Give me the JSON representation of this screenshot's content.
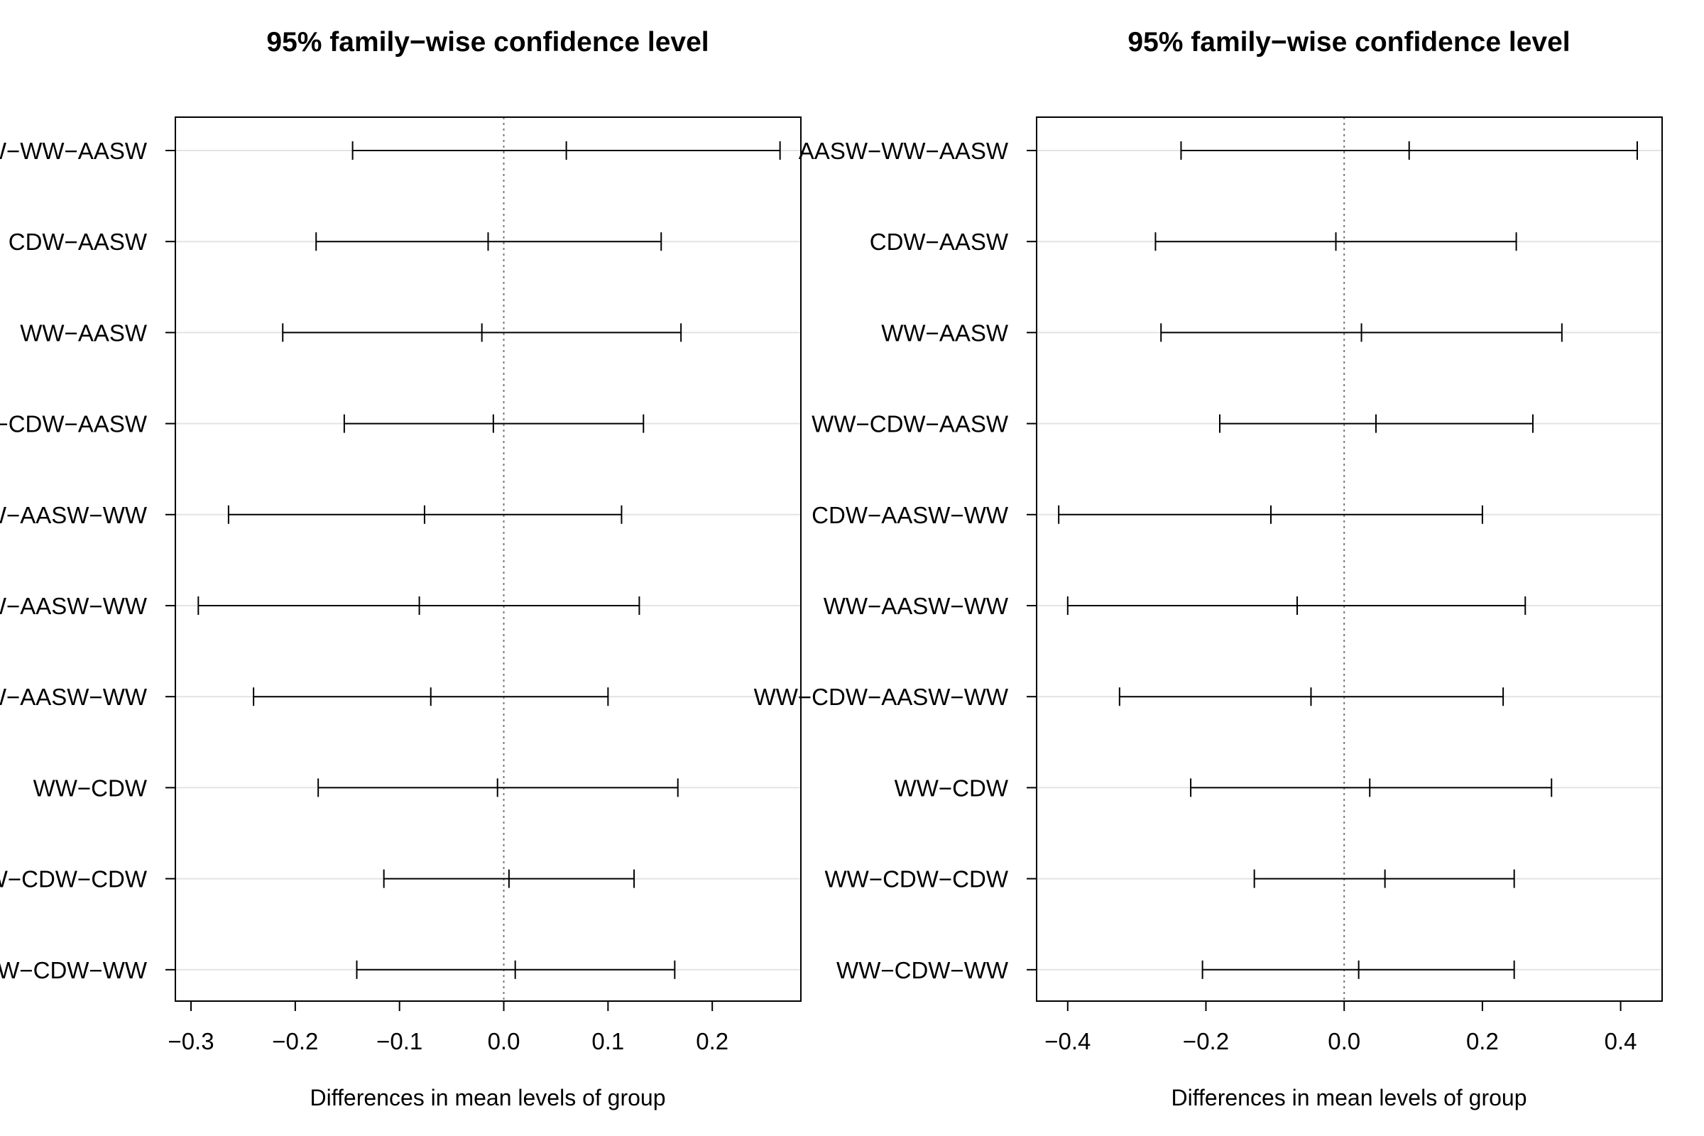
{
  "chart_data": [
    {
      "type": "errorbar",
      "title": "95% family−wise confidence level",
      "xlabel": "Differences in mean levels of group",
      "xlim": [
        -0.315,
        0.285
      ],
      "xticks": [
        -0.3,
        -0.2,
        -0.1,
        0.0,
        0.1,
        0.2
      ],
      "xtick_labels": [
        "−0.3",
        "−0.2",
        "−0.1",
        "0.0",
        "0.1",
        "0.2"
      ],
      "reference_line": 0,
      "grid": "horizontal",
      "categories": [
        "W−WW−AASW",
        "CDW−AASW",
        "WW−AASW",
        "−CDW−AASW",
        "W−AASW−WW",
        "W−AASW−WW",
        "W−AASW−WW",
        "WW−CDW",
        "W−CDW−CDW",
        "W−CDW−WW"
      ],
      "diff": [
        0.06,
        -0.015,
        -0.021,
        -0.01,
        -0.076,
        -0.081,
        -0.07,
        -0.006,
        0.005,
        0.011
      ],
      "lwr": [
        -0.145,
        -0.18,
        -0.212,
        -0.153,
        -0.264,
        -0.293,
        -0.24,
        -0.178,
        -0.115,
        -0.141
      ],
      "upr": [
        0.265,
        0.151,
        0.17,
        0.134,
        0.113,
        0.13,
        0.1,
        0.167,
        0.125,
        0.164
      ]
    },
    {
      "type": "errorbar",
      "title": "95% family−wise confidence level",
      "xlabel": "Differences in mean levels of group",
      "xlim": [
        -0.445,
        0.46
      ],
      "xticks": [
        -0.4,
        -0.2,
        0.0,
        0.2,
        0.4
      ],
      "xtick_labels": [
        "−0.4",
        "−0.2",
        "0.0",
        "0.2",
        "0.4"
      ],
      "reference_line": 0,
      "grid": "horizontal",
      "categories": [
        "AASW−WW−AASW",
        "CDW−AASW",
        "WW−AASW",
        "WW−CDW−AASW",
        "CDW−AASW−WW",
        "WW−AASW−WW",
        "WW−CDW−AASW−WW",
        "WW−CDW",
        "WW−CDW−CDW",
        "WW−CDW−WW"
      ],
      "diff": [
        0.094,
        -0.012,
        0.025,
        0.046,
        -0.106,
        -0.068,
        -0.048,
        0.037,
        0.059,
        0.021
      ],
      "lwr": [
        -0.236,
        -0.273,
        -0.265,
        -0.18,
        -0.413,
        -0.4,
        -0.325,
        -0.222,
        -0.13,
        -0.205
      ],
      "upr": [
        0.424,
        0.249,
        0.315,
        0.273,
        0.2,
        0.262,
        0.23,
        0.3,
        0.246,
        0.246
      ]
    }
  ]
}
